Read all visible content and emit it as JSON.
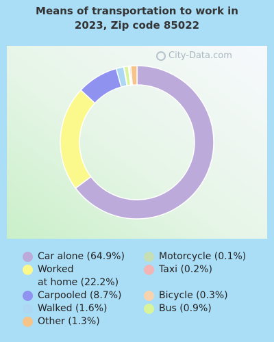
{
  "chart_data": {
    "type": "pie",
    "title": "Means of transportation to work in 2023, Zip code 85022",
    "slices": [
      {
        "label": "Car alone (64.9%)",
        "value": 64.9,
        "color": "#bcaadb"
      },
      {
        "label": "Worked at home (22.2%)",
        "value": 22.2,
        "color": "#fbf98c"
      },
      {
        "label": "Carpooled (8.7%)",
        "value": 8.7,
        "color": "#8f92ef"
      },
      {
        "label": "Walked (1.6%)",
        "value": 1.6,
        "color": "#add8f3"
      },
      {
        "label": "Motorcycle (0.1%)",
        "value": 0.1,
        "color": "#c7dfb4"
      },
      {
        "label": "Bus (0.9%)",
        "value": 0.9,
        "color": "#d8f59a"
      },
      {
        "label": "Taxi (0.2%)",
        "value": 0.2,
        "color": "#f2b4b4"
      },
      {
        "label": "Bicycle (0.3%)",
        "value": 0.3,
        "color": "#f7d3af"
      },
      {
        "label": "Other (1.3%)",
        "value": 1.3,
        "color": "#f6c488"
      }
    ]
  },
  "title_line1": "Means of transportation to work in",
  "title_line2": "2023, Zip code 85022",
  "watermark": "City-Data.com",
  "legend_left": [
    {
      "text": "Car alone (64.9%)",
      "color": "#bcaadb"
    },
    {
      "text": "Worked",
      "text2": "at home (22.2%)",
      "color": "#fbf98c"
    },
    {
      "text": "Carpooled (8.7%)",
      "color": "#8f92ef"
    },
    {
      "text": "Walked (1.6%)",
      "color": "#add8f3"
    },
    {
      "text": "Other (1.3%)",
      "color": "#f6c488"
    }
  ],
  "legend_right": [
    {
      "text": "Motorcycle (0.1%)",
      "color": "#c7dfb4"
    },
    {
      "text": "Taxi (0.2%)",
      "color": "#f2b4b4"
    },
    {
      "text": "Bicycle (0.3%)",
      "color": "#f7d3af"
    },
    {
      "text": "Bus (0.9%)",
      "color": "#d8f59a"
    }
  ]
}
